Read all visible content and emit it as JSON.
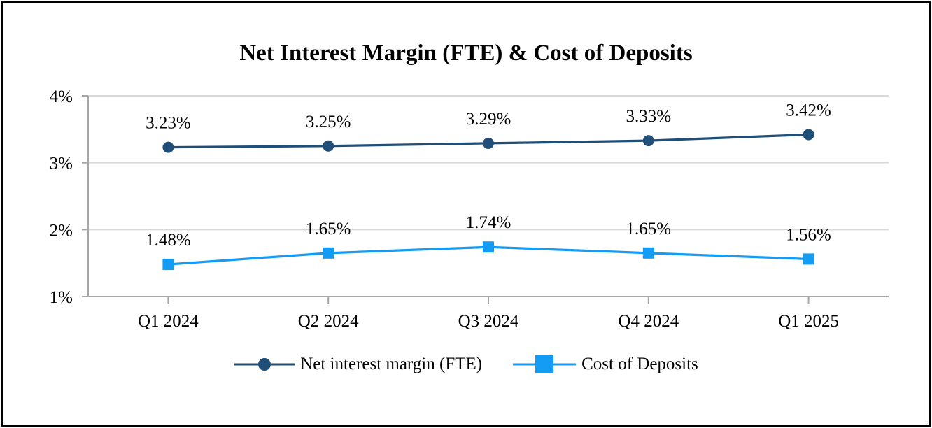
{
  "chart_data": {
    "type": "line",
    "title": "Net Interest Margin (FTE) & Cost of Deposits",
    "categories": [
      "Q1 2024",
      "Q2 2024",
      "Q3 2024",
      "Q4 2024",
      "Q1 2025"
    ],
    "series": [
      {
        "id": "net-interest-margin-fte",
        "name": "Net interest margin (FTE)",
        "values": [
          3.23,
          3.25,
          3.29,
          3.33,
          3.42
        ],
        "labels": [
          "3.23%",
          "3.25%",
          "3.29%",
          "3.33%",
          "3.42%"
        ],
        "color": "#1F4E79",
        "marker": "circle"
      },
      {
        "id": "cost-of-deposits",
        "name": "Cost of Deposits",
        "values": [
          1.48,
          1.65,
          1.74,
          1.65,
          1.56
        ],
        "labels": [
          "1.48%",
          "1.65%",
          "1.74%",
          "1.65%",
          "1.56%"
        ],
        "color": "#149BF3",
        "marker": "square"
      }
    ],
    "ylim": [
      1,
      4
    ],
    "yticks": [
      {
        "value": 1,
        "label": "1%"
      },
      {
        "value": 2,
        "label": "2%"
      },
      {
        "value": 3,
        "label": "3%"
      },
      {
        "value": 4,
        "label": "4%"
      }
    ],
    "grid": true,
    "legend_position": "bottom"
  },
  "colors": {
    "gridline": "#D9D9D9",
    "axis": "#A6A6A6",
    "text": "#000000",
    "frame_border": "#000000",
    "background": "#FFFFFF"
  }
}
